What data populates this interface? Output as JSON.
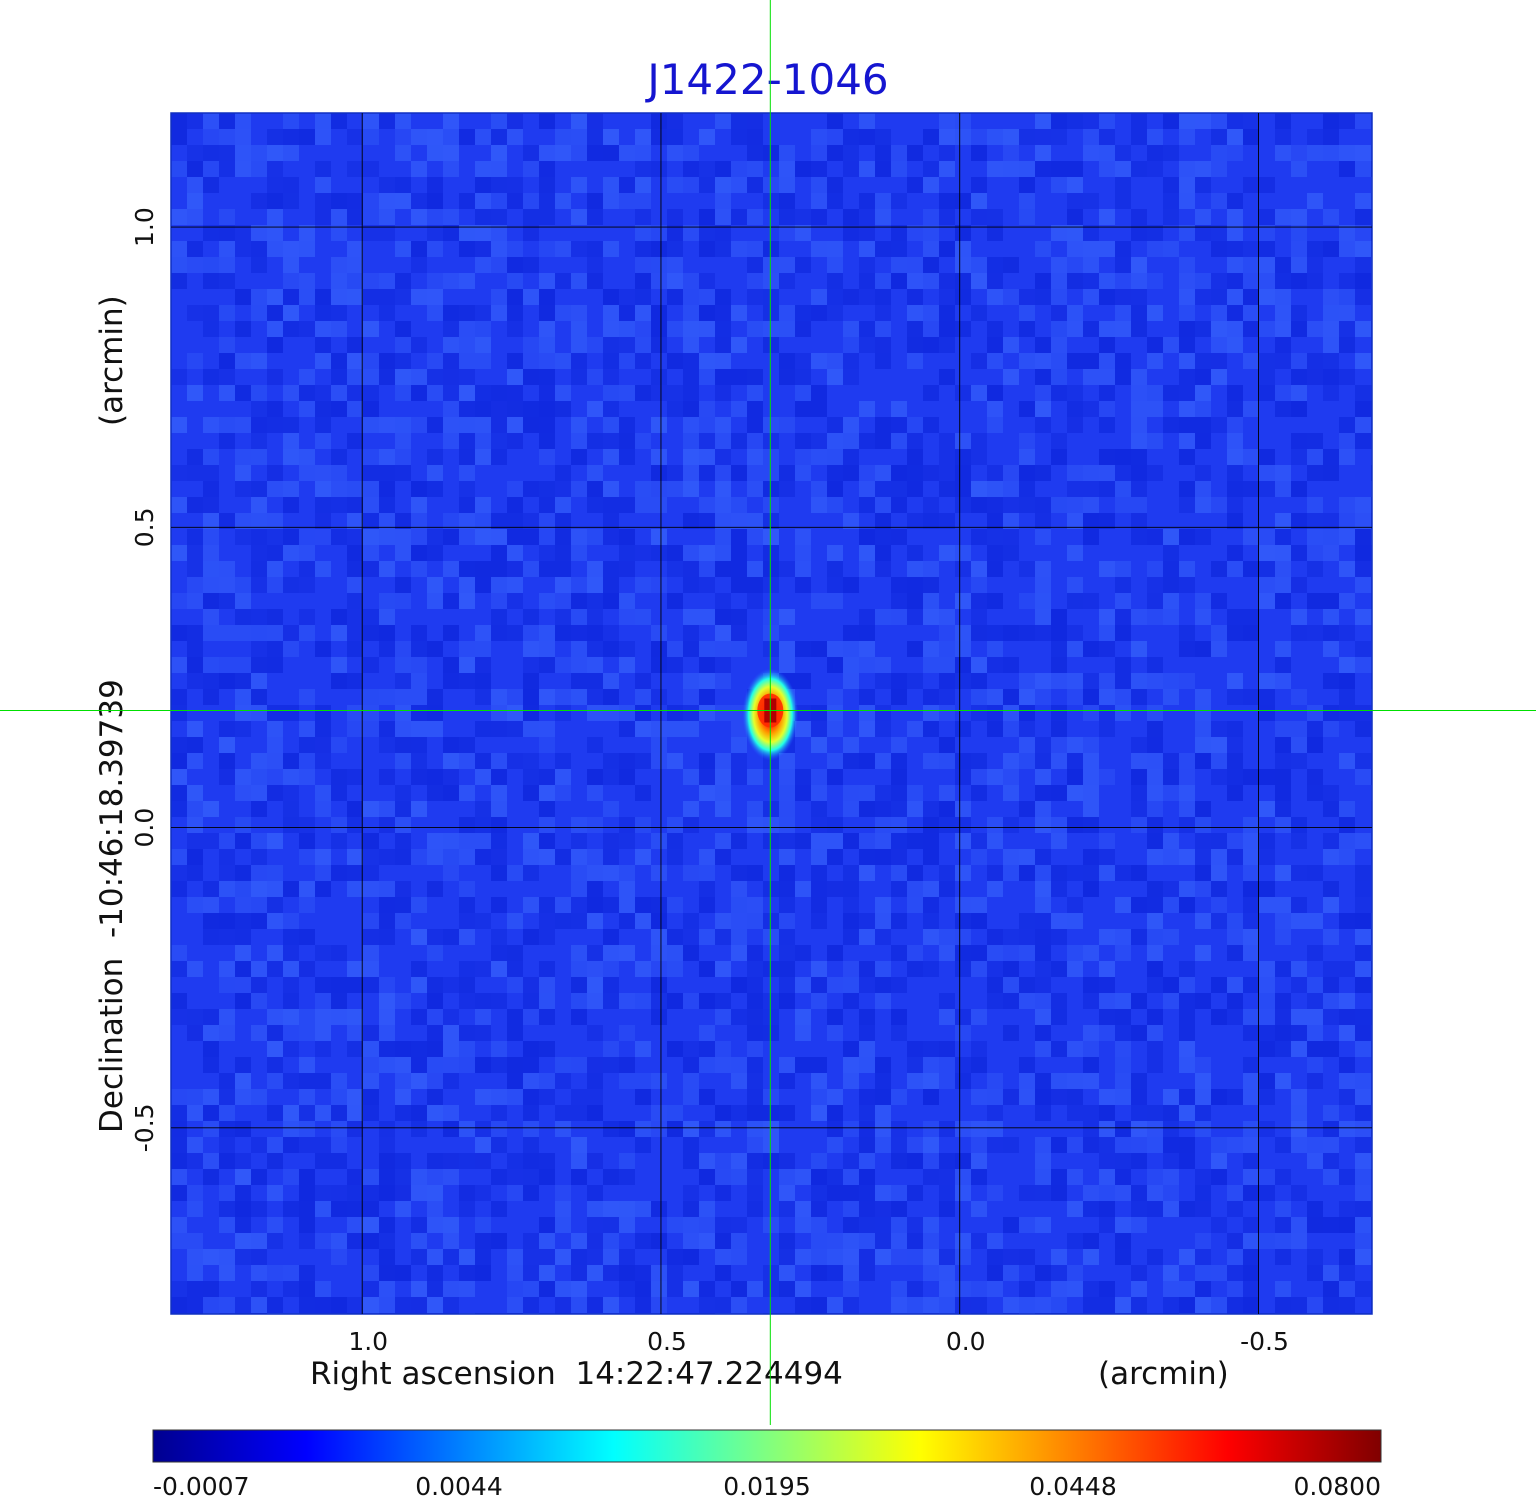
{
  "chart_data": {
    "type": "heatmap",
    "title": "J1422-1046",
    "xlabel": "Right ascension  14:22:47.224494",
    "xlabel_unit": "(arcmin)",
    "ylabel": "Declination  -10:46:18.39739",
    "ylabel_unit": "(arcmin)",
    "x_axis": {
      "direction": "reversed",
      "range": [
        1.32,
        -0.69
      ],
      "ticks": [
        1.0,
        0.5,
        0.0,
        -0.5
      ],
      "tick_labels": [
        "1.0",
        "0.5",
        "0.0",
        "-0.5"
      ]
    },
    "y_axis": {
      "range": [
        -0.81,
        1.19
      ],
      "ticks": [
        -0.5,
        0.0,
        0.5,
        1.0
      ],
      "tick_labels": [
        "-0.5",
        "0.0",
        "0.5",
        "1.0"
      ]
    },
    "grid": true,
    "crosshair": {
      "x": 0.317,
      "y": 0.195,
      "color": "#00e000"
    },
    "source_peak": {
      "x": 0.317,
      "y": 0.195,
      "value": 0.08
    },
    "colorbar": {
      "colormap": "jet",
      "range": [
        -0.0007,
        0.08
      ],
      "ticks": [
        -0.0007,
        0.0044,
        0.0195,
        0.0448,
        0.08
      ],
      "tick_labels": [
        "-0.0007",
        "0.0044",
        "0.0195",
        "0.0448",
        "0.0800"
      ],
      "placement": "bottom"
    }
  },
  "colors": {
    "title": "#1515d0",
    "text": "#111111",
    "grid": "#000000",
    "crosshair": "#00e000",
    "background": "#1f3bf0"
  }
}
